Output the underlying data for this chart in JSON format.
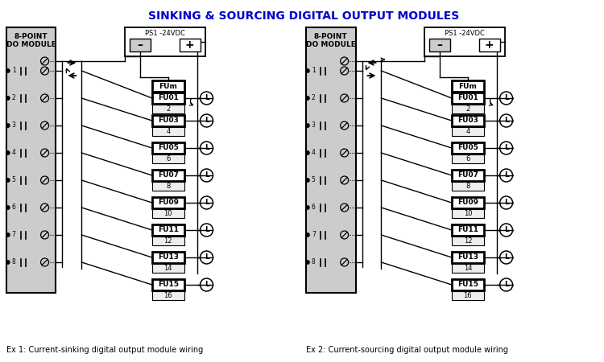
{
  "title": "SINKING & SOURCING DIGITAL OUTPUT MODULES",
  "title_color": "#0000CC",
  "title_fontsize": 10,
  "bg_color": "#FFFFFF",
  "module_bg": "#CCCCCC",
  "caption1": "Ex 1: Current-sinking digital output module wiring",
  "caption2": "Ex 2: Current-sourcing digital output module wiring",
  "fu_odd_labels": [
    "FUm",
    "FU01",
    "FU03",
    "FU05",
    "FU07",
    "FU09",
    "FU11",
    "FU13",
    "FU15"
  ],
  "fu_even_nums": [
    "2",
    "4",
    "6",
    "8",
    "10",
    "12",
    "14",
    "16"
  ],
  "point_labels": [
    "1",
    "2",
    "3",
    "4",
    "5",
    "6",
    "7",
    "8"
  ],
  "ps_label": "PS1 -24VDC",
  "black": "#000000",
  "white": "#FFFFFF",
  "gray": "#CCCCCC",
  "lightgray": "#EEEEEE"
}
